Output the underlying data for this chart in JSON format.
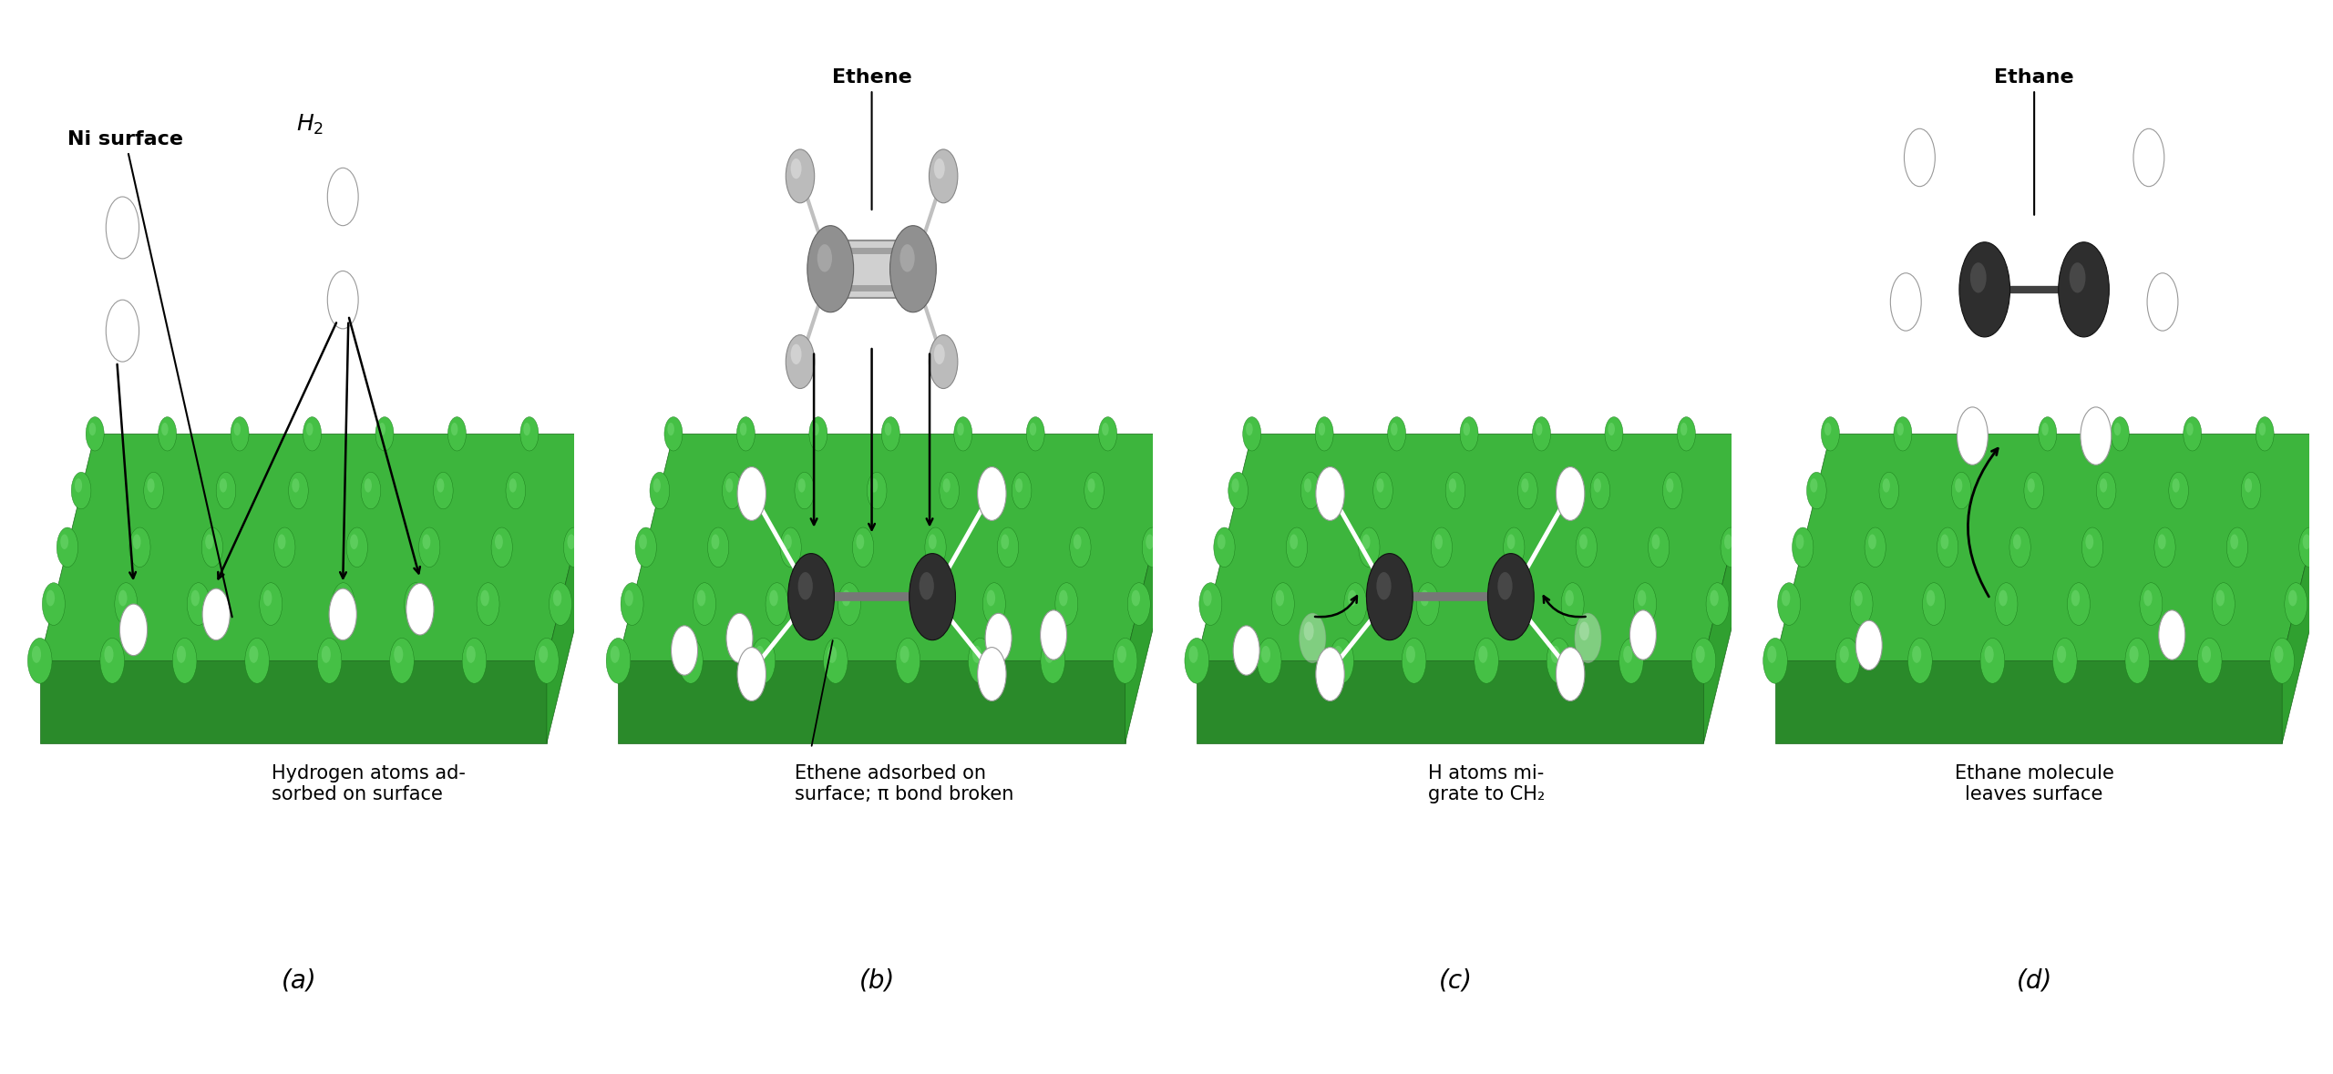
{
  "bg_color": "#ffffff",
  "panel_labels": [
    "(a)",
    "(b)",
    "(c)",
    "(d)"
  ],
  "panel_label_fontsize": 20,
  "label_a_top1": "Ni surface",
  "label_a_h2": "H",
  "label_a_bottom": "Hydrogen atoms ad-\nsorbed on surface",
  "label_b_top": "Ethene",
  "label_b_bottom": "Ethene adsorbed on\nsurface; π bond broken",
  "label_c_bottom": "H atoms mi-\ngrate to CH₂",
  "label_d_top": "Ethane",
  "label_d_bottom": "Ethane molecule\nleaves surface",
  "title_fontsize": 16,
  "body_fontsize": 15,
  "ni_top_color": "#3db53d",
  "ni_sphere_color": "#45c045",
  "ni_sphere_highlight": "#70d870",
  "ni_front_color": "#2a8a2a",
  "ni_right_color": "#30a030"
}
